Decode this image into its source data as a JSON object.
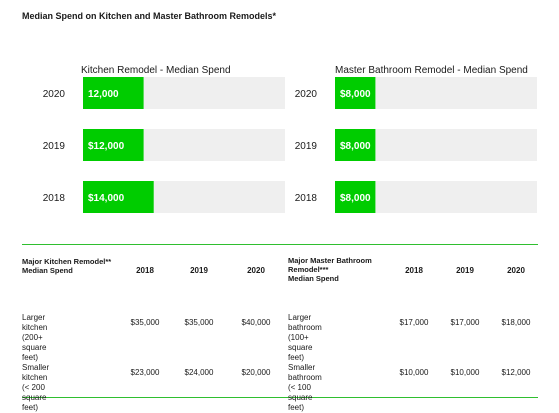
{
  "title": "Median Spend on Kitchen and Master Bathroom Remodels*",
  "colors": {
    "bar": "#00cc00",
    "track": "#efefef",
    "rule": "#2fbf2f"
  },
  "chart_data": [
    {
      "type": "bar",
      "title": "Kitchen Remodel - Median Spend",
      "categories": [
        "2020",
        "2019",
        "2018"
      ],
      "values": [
        12000,
        12000,
        14000
      ],
      "data_labels": [
        "12,000",
        "$12,000",
        "$14,000"
      ],
      "xlim": [
        0,
        40000
      ],
      "orientation": "horizontal"
    },
    {
      "type": "bar",
      "title": "Master Bathroom Remodel - Median Spend",
      "categories": [
        "2020",
        "2019",
        "2018"
      ],
      "values": [
        8000,
        8000,
        8000
      ],
      "data_labels": [
        "$8,000",
        "$8,000",
        "$8,000"
      ],
      "xlim": [
        0,
        40000
      ],
      "orientation": "horizontal"
    }
  ],
  "tables": [
    {
      "header_lines": [
        "Major Kitchen Remodel**",
        "Median Spend"
      ],
      "years": [
        "2018",
        "2019",
        "2020"
      ],
      "rows": [
        {
          "label_lines": [
            "Larger kitchen",
            "(200+ square feet)"
          ],
          "values": [
            "$35,000",
            "$35,000",
            "$40,000"
          ]
        },
        {
          "label_lines": [
            "Smaller kitchen",
            "(< 200 square feet)"
          ],
          "values": [
            "$23,000",
            "$24,000",
            "$20,000"
          ]
        }
      ]
    },
    {
      "header_lines": [
        "Major Master Bathroom",
        "Remodel***",
        "Median Spend"
      ],
      "years": [
        "2018",
        "2019",
        "2020"
      ],
      "rows": [
        {
          "label_lines": [
            "Larger bathroom",
            "(100+ square feet)"
          ],
          "values": [
            "$17,000",
            "$17,000",
            "$18,000"
          ]
        },
        {
          "label_lines": [
            "Smaller bathroom",
            "(< 100 square feet)"
          ],
          "values": [
            "$10,000",
            "$10,000",
            "$12,000"
          ]
        }
      ]
    }
  ]
}
